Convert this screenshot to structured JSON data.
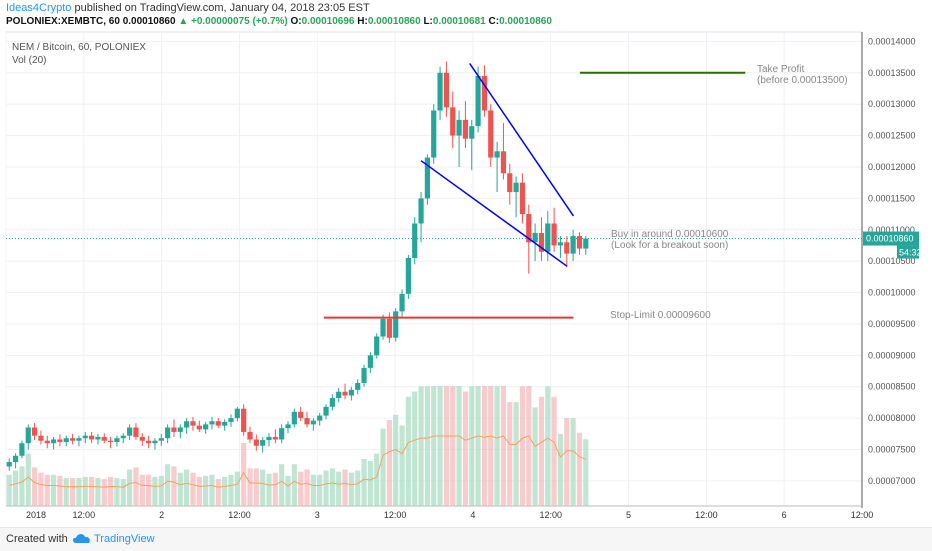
{
  "header": {
    "author": "Ideas4Crypto",
    "published": "published on TradingView.com, January 04, 2018 23:05 EST",
    "symbol": "POLONIEX:XEMBTC, 60",
    "price": "0.00010860",
    "change": "▲ +0.00000075 (+0.7%)",
    "o_label": "O:",
    "o_val": "0.00010696",
    "h_label": "H:",
    "h_val": "0.00010860",
    "l_label": "L:",
    "l_val": "0.00010681",
    "c_label": "C:",
    "c_val": "0.00010860"
  },
  "legend": {
    "title": "NEM / Bitcoin, 60, POLONIEX",
    "vol": "Vol (20)"
  },
  "annotations": {
    "take_profit": "Take Profit",
    "take_profit_sub": "(before 0.00013500)",
    "buy": "Buy in around 0.00010600",
    "buy_sub": "(Look for a breakout soon)",
    "stop": "Stop-Limit 0.00009600"
  },
  "price_tag": "0.00010860",
  "countdown": "54:32",
  "footer": {
    "created": "Created with",
    "brand": "TradingView"
  },
  "colors": {
    "up": "#26a69a",
    "down": "#ef5350",
    "wedge": "#0000ff",
    "take_profit": "#2e6b00",
    "stop": "#e53935",
    "ma": "#f5a25d",
    "tag": "#26a69a"
  },
  "chart_data": {
    "type": "candlestick",
    "title": "NEM / Bitcoin, 60, POLONIEX",
    "y_ticks": [
      "0.00007000",
      "0.00007500",
      "0.00008000",
      "0.00008500",
      "0.00009000",
      "0.00009500",
      "0.00010000",
      "0.00010500",
      "0.00011000",
      "0.00011500",
      "0.00012000",
      "0.00012500",
      "0.00013000",
      "0.00013500",
      "0.00014000"
    ],
    "x_ticks": [
      "2018",
      "12:00",
      "2",
      "12:00",
      "3",
      "12:00",
      "4",
      "12:00",
      "5",
      "12:00",
      "6",
      "12:00"
    ],
    "ylim": [
      6.6e-05,
      0.0001415
    ],
    "x_range_hours": [
      0,
      132
    ],
    "levels": {
      "take_profit": 0.000135,
      "stop_limit": 9.6e-05,
      "last": 0.0001086
    },
    "wedge": {
      "upper": [
        [
          71.5,
          0.0001365
        ],
        [
          87.5,
          0.0001122
        ]
      ],
      "lower": [
        [
          64,
          0.000121
        ],
        [
          86.5,
          0.0001042
        ]
      ]
    },
    "ohlc": [
      [
        7.23e-05,
        7.36e-05,
        7.16e-05,
        7.3e-05
      ],
      [
        7.3e-05,
        7.44e-05,
        7.2e-05,
        7.4e-05
      ],
      [
        7.4e-05,
        7.64e-05,
        7.36e-05,
        7.6e-05
      ],
      [
        7.6e-05,
        7.9e-05,
        7.5e-05,
        7.85e-05
      ],
      [
        7.85e-05,
        7.92e-05,
        7.65e-05,
        7.72e-05
      ],
      [
        7.72e-05,
        7.8e-05,
        7.58e-05,
        7.64e-05
      ],
      [
        7.64e-05,
        7.72e-05,
        7.52e-05,
        7.6e-05
      ],
      [
        7.6e-05,
        7.7e-05,
        7.5e-05,
        7.66e-05
      ],
      [
        7.66e-05,
        7.74e-05,
        7.55e-05,
        7.62e-05
      ],
      [
        7.62e-05,
        7.72e-05,
        7.55e-05,
        7.68e-05
      ],
      [
        7.68e-05,
        7.75e-05,
        7.58e-05,
        7.64e-05
      ],
      [
        7.64e-05,
        7.72e-05,
        7.55e-05,
        7.68e-05
      ],
      [
        7.68e-05,
        7.78e-05,
        7.6e-05,
        7.72e-05
      ],
      [
        7.72e-05,
        7.78e-05,
        7.6e-05,
        7.66e-05
      ],
      [
        7.66e-05,
        7.75e-05,
        7.58e-05,
        7.7e-05
      ],
      [
        7.7e-05,
        7.76e-05,
        7.6e-05,
        7.64e-05
      ],
      [
        7.64e-05,
        7.7e-05,
        7.52e-05,
        7.62e-05
      ],
      [
        7.62e-05,
        7.72e-05,
        7.55e-05,
        7.68e-05
      ],
      [
        7.68e-05,
        7.76e-05,
        7.6e-05,
        7.72e-05
      ],
      [
        7.72e-05,
        7.9e-05,
        7.65e-05,
        7.85e-05
      ],
      [
        7.85e-05,
        7.92e-05,
        7.65e-05,
        7.7e-05
      ],
      [
        7.7e-05,
        7.76e-05,
        7.56e-05,
        7.64e-05
      ],
      [
        7.64e-05,
        7.72e-05,
        7.52e-05,
        7.6e-05
      ],
      [
        7.6e-05,
        7.68e-05,
        7.5e-05,
        7.64e-05
      ],
      [
        7.64e-05,
        7.75e-05,
        7.56e-05,
        7.68e-05
      ],
      [
        7.68e-05,
        7.9e-05,
        7.6e-05,
        7.85e-05
      ],
      [
        7.85e-05,
        7.98e-05,
        7.7e-05,
        7.78e-05
      ],
      [
        7.78e-05,
        7.9e-05,
        7.68e-05,
        7.85e-05
      ],
      [
        7.85e-05,
        8e-05,
        7.75e-05,
        7.95e-05
      ],
      [
        7.95e-05,
        8.02e-05,
        7.8e-05,
        7.88e-05
      ],
      [
        7.88e-05,
        7.96e-05,
        7.78e-05,
        7.82e-05
      ],
      [
        7.82e-05,
        7.94e-05,
        7.75e-05,
        7.9e-05
      ],
      [
        7.9e-05,
        8.02e-05,
        7.82e-05,
        7.95e-05
      ],
      [
        7.95e-05,
        8e-05,
        7.84e-05,
        7.88e-05
      ],
      [
        7.88e-05,
        7.98e-05,
        7.8e-05,
        7.94e-05
      ],
      [
        7.94e-05,
        8.06e-05,
        7.86e-05,
        8e-05
      ],
      [
        8e-05,
        8.18e-05,
        7.95e-05,
        8.15e-05
      ],
      [
        8.15e-05,
        8.22e-05,
        7.72e-05,
        7.78e-05
      ],
      [
        7.78e-05,
        7.86e-05,
        7.6e-05,
        7.66e-05
      ],
      [
        7.66e-05,
        7.74e-05,
        7.48e-05,
        7.56e-05
      ],
      [
        7.56e-05,
        7.7e-05,
        7.45e-05,
        7.65e-05
      ],
      [
        7.65e-05,
        7.76e-05,
        7.55e-05,
        7.7e-05
      ],
      [
        7.7e-05,
        7.82e-05,
        7.6e-05,
        7.66e-05
      ],
      [
        7.66e-05,
        7.9e-05,
        7.6e-05,
        7.84e-05
      ],
      [
        7.84e-05,
        7.95e-05,
        7.76e-05,
        7.9e-05
      ],
      [
        7.9e-05,
        8.15e-05,
        7.85e-05,
        8.1e-05
      ],
      [
        8.1e-05,
        8.18e-05,
        7.95e-05,
        8e-05
      ],
      [
        8e-05,
        8.1e-05,
        7.85e-05,
        7.9e-05
      ],
      [
        7.9e-05,
        8e-05,
        7.8e-05,
        7.96e-05
      ],
      [
        7.96e-05,
        8.08e-05,
        7.88e-05,
        8.04e-05
      ],
      [
        8.04e-05,
        8.22e-05,
        7.98e-05,
        8.18e-05
      ],
      [
        8.18e-05,
        8.38e-05,
        8.12e-05,
        8.32e-05
      ],
      [
        8.32e-05,
        8.48e-05,
        8.25e-05,
        8.42e-05
      ],
      [
        8.42e-05,
        8.55e-05,
        8.3e-05,
        8.36e-05
      ],
      [
        8.36e-05,
        8.5e-05,
        8.28e-05,
        8.45e-05
      ],
      [
        8.45e-05,
        8.62e-05,
        8.38e-05,
        8.56e-05
      ],
      [
        8.56e-05,
        8.85e-05,
        8.5e-05,
        8.8e-05
      ],
      [
        8.8e-05,
        9.05e-05,
        8.72e-05,
        9e-05
      ],
      [
        9e-05,
        9.35e-05,
        8.95e-05,
        9.3e-05
      ],
      [
        9.3e-05,
        9.65e-05,
        9.25e-05,
        9.58e-05
      ],
      [
        9.58e-05,
        9.68e-05,
        9.2e-05,
        9.28e-05
      ],
      [
        9.28e-05,
        9.75e-05,
        9.22e-05,
        9.7e-05
      ],
      [
        9.7e-05,
        0.0001005,
        9.62e-05,
        9.98e-05
      ],
      [
        9.98e-05,
        0.000106,
        9.9e-05,
        0.0001055
      ],
      [
        0.0001055,
        0.000112,
        0.0001045,
        0.000111
      ],
      [
        0.000111,
        0.000116,
        0.000108,
        0.000115
      ],
      [
        0.000115,
        0.000122,
        0.000114,
        0.0001215
      ],
      [
        0.0001215,
        0.00013,
        0.0001205,
        0.000129
      ],
      [
        0.000129,
        0.000136,
        0.0001275,
        0.000135
      ],
      [
        0.000135,
        0.0001368,
        0.000128,
        0.0001295
      ],
      [
        0.0001295,
        0.000132,
        0.000123,
        0.000125
      ],
      [
        0.000125,
        0.000129,
        0.00012,
        0.0001275
      ],
      [
        0.0001275,
        0.0001305,
        0.000123,
        0.0001245
      ],
      [
        0.0001245,
        0.0001275,
        0.0001195,
        0.0001265
      ],
      [
        0.0001265,
        0.000136,
        0.0001255,
        0.0001345
      ],
      [
        0.0001345,
        0.0001362,
        0.000128,
        0.000129
      ],
      [
        0.000129,
        0.00013,
        0.00012,
        0.0001215
      ],
      [
        0.0001215,
        0.000124,
        0.000116,
        0.0001225
      ],
      [
        0.0001225,
        0.000127,
        0.000118,
        0.000119
      ],
      [
        0.000119,
        0.0001205,
        0.000114,
        0.000116
      ],
      [
        0.000116,
        0.0001185,
        0.000112,
        0.0001175
      ],
      [
        0.0001175,
        0.000119,
        0.000111,
        0.0001125
      ],
      [
        0.0001125,
        0.000114,
        0.000103,
        0.000108
      ],
      [
        0.000108,
        0.000111,
        0.000105,
        0.0001095
      ],
      [
        0.0001095,
        0.000112,
        0.000105,
        0.0001065
      ],
      [
        0.0001065,
        0.000113,
        0.000105,
        0.000111
      ],
      [
        0.000111,
        0.0001135,
        0.0001065,
        0.0001075
      ],
      [
        0.0001075,
        0.000109,
        0.0001055,
        0.000108
      ],
      [
        0.000108,
        0.000109,
        0.000104,
        0.0001062
      ],
      [
        0.0001062,
        0.00011,
        0.000105,
        0.000109
      ],
      [
        0.000109,
        0.0001096,
        0.000106,
        0.000107
      ],
      [
        0.000107,
        0.000109,
        0.000106,
        0.0001086
      ]
    ]
  }
}
